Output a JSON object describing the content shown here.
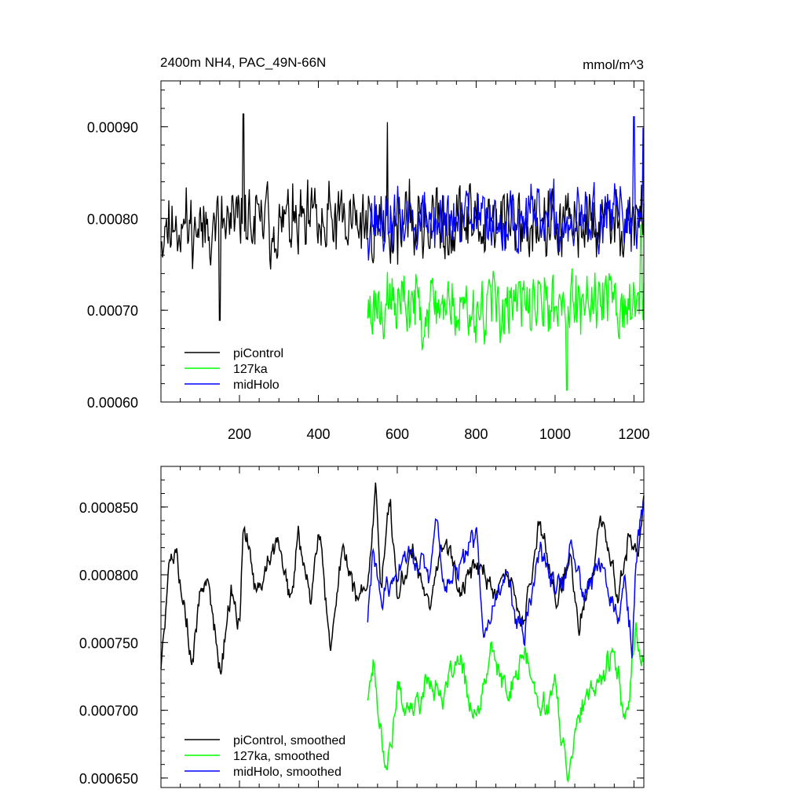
{
  "chart_data": [
    {
      "type": "line",
      "title": "2400m NH4, PAC_49N-66N",
      "unit_label": "mmol/m^3",
      "xlim": [
        1,
        1225
      ],
      "ylim": [
        0.0006,
        0.00095
      ],
      "x_ticks": [
        200,
        400,
        600,
        800,
        1000,
        1200
      ],
      "x_tick_labels": [
        "200",
        "400",
        "600",
        "800",
        "1000",
        "1200"
      ],
      "y_ticks": [
        0.0006,
        0.0007,
        0.0008,
        0.0009
      ],
      "y_tick_labels": [
        "0.00060",
        "0.00070",
        "0.00080",
        "0.00090"
      ],
      "legend_position": "lower-left",
      "series": [
        {
          "name": "piControl",
          "color": "#000000",
          "x_start": 1,
          "x_end": 1225,
          "mean": 0.000795,
          "amplitude": 5.2e-05,
          "seed": 11,
          "features": [
            {
              "x": 210,
              "y": 0.000914
            },
            {
              "x": 150,
              "y": 0.000689
            },
            {
              "x": 575,
              "y": 0.000905
            }
          ]
        },
        {
          "name": "127ka",
          "color": "#00ff00",
          "x_start": 525,
          "x_end": 1225,
          "mean": 0.000705,
          "amplitude": 4.8e-05,
          "seed": 23,
          "features": [
            {
              "x": 1030,
              "y": 0.000613
            },
            {
              "x": 1218,
              "y": 0.000793
            }
          ]
        },
        {
          "name": "midHolo",
          "color": "#0000ff",
          "x_start": 525,
          "x_end": 1225,
          "mean": 0.000797,
          "amplitude": 4.6e-05,
          "seed": 37,
          "features": [
            {
              "x": 1200,
              "y": 0.000911
            },
            {
              "x": 1223,
              "y": 0.000899
            }
          ]
        }
      ]
    },
    {
      "type": "line",
      "xlim": [
        1,
        1225
      ],
      "ylim": [
        0.000643,
        0.00088
      ],
      "x_ticks": [
        200,
        400,
        600,
        800,
        1000,
        1200
      ],
      "y_ticks": [
        0.00065,
        0.0007,
        0.00075,
        0.0008,
        0.00085
      ],
      "y_tick_labels": [
        "0.000650",
        "0.000700",
        "0.000750",
        "0.000800",
        "0.000850"
      ],
      "legend_position": "lower-left",
      "series": [
        {
          "name": "piControl, smoothed",
          "color": "#000000",
          "x_start": 1,
          "x_end": 1225,
          "anchors": [
            [
              1,
              0.000732
            ],
            [
              20,
              0.000803
            ],
            [
              40,
              0.000818
            ],
            [
              60,
              0.000785
            ],
            [
              80,
              0.000728
            ],
            [
              100,
              0.00079
            ],
            [
              120,
              0.000805
            ],
            [
              150,
              0.00073
            ],
            [
              180,
              0.00079
            ],
            [
              200,
              0.00076
            ],
            [
              210,
              0.000844
            ],
            [
              240,
              0.000785
            ],
            [
              270,
              0.00081
            ],
            [
              300,
              0.000825
            ],
            [
              330,
              0.00077
            ],
            [
              350,
              0.00083
            ],
            [
              380,
              0.00078
            ],
            [
              400,
              0.000836
            ],
            [
              430,
              0.000748
            ],
            [
              460,
              0.00082
            ],
            [
              490,
              0.00078
            ],
            [
              525,
              0.00079
            ],
            [
              545,
              0.00086
            ],
            [
              560,
              0.00079
            ],
            [
              580,
              0.000868
            ],
            [
              600,
              0.00078
            ],
            [
              640,
              0.00082
            ],
            [
              680,
              0.00078
            ],
            [
              720,
              0.00083
            ],
            [
              760,
              0.00079
            ],
            [
              800,
              0.00081
            ],
            [
              840,
              0.00078
            ],
            [
              880,
              0.0008
            ],
            [
              920,
              0.00076
            ],
            [
              960,
              0.00084
            ],
            [
              1000,
              0.00078
            ],
            [
              1040,
              0.00081
            ],
            [
              1060,
              0.00076
            ],
            [
              1080,
              0.00079
            ],
            [
              1120,
              0.00084
            ],
            [
              1160,
              0.00078
            ],
            [
              1190,
              0.000835
            ],
            [
              1210,
              0.00081
            ],
            [
              1225,
              0.00085
            ]
          ],
          "amplitude": 1.2e-05,
          "seed": 5
        },
        {
          "name": "127ka, smoothed",
          "color": "#00ff00",
          "x_start": 525,
          "x_end": 1225,
          "anchors": [
            [
              525,
              0.000708
            ],
            [
              540,
              0.000742
            ],
            [
              555,
              0.00069
            ],
            [
              575,
              0.000662
            ],
            [
              600,
              0.000712
            ],
            [
              640,
              0.0007
            ],
            [
              680,
              0.000725
            ],
            [
              720,
              0.00071
            ],
            [
              760,
              0.000736
            ],
            [
              800,
              0.00069
            ],
            [
              840,
              0.000745
            ],
            [
              880,
              0.000705
            ],
            [
              920,
              0.000745
            ],
            [
              960,
              0.0007
            ],
            [
              1000,
              0.00072
            ],
            [
              1030,
              0.000652
            ],
            [
              1060,
              0.0007
            ],
            [
              1100,
              0.00071
            ],
            [
              1140,
              0.00074
            ],
            [
              1180,
              0.0007
            ],
            [
              1205,
              0.000757
            ],
            [
              1225,
              0.000735
            ]
          ],
          "amplitude": 1.3e-05,
          "seed": 17
        },
        {
          "name": "midHolo, smoothed",
          "color": "#0000ff",
          "x_start": 525,
          "x_end": 1225,
          "anchors": [
            [
              525,
              0.000765
            ],
            [
              540,
              0.00082
            ],
            [
              560,
              0.00078
            ],
            [
              600,
              0.0008
            ],
            [
              640,
              0.00082
            ],
            [
              680,
              0.00079
            ],
            [
              700,
              0.000842
            ],
            [
              720,
              0.00079
            ],
            [
              760,
              0.000805
            ],
            [
              800,
              0.00083
            ],
            [
              820,
              0.00076
            ],
            [
              840,
              0.00078
            ],
            [
              880,
              0.0008
            ],
            [
              920,
              0.00075
            ],
            [
              960,
              0.00082
            ],
            [
              1000,
              0.00079
            ],
            [
              1040,
              0.00081
            ],
            [
              1080,
              0.00079
            ],
            [
              1120,
              0.00081
            ],
            [
              1160,
              0.00077
            ],
            [
              1180,
              0.0008
            ],
            [
              1195,
              0.00075
            ],
            [
              1210,
              0.00083
            ],
            [
              1225,
              0.000853
            ]
          ],
          "amplitude": 1.2e-05,
          "seed": 29
        }
      ]
    }
  ]
}
